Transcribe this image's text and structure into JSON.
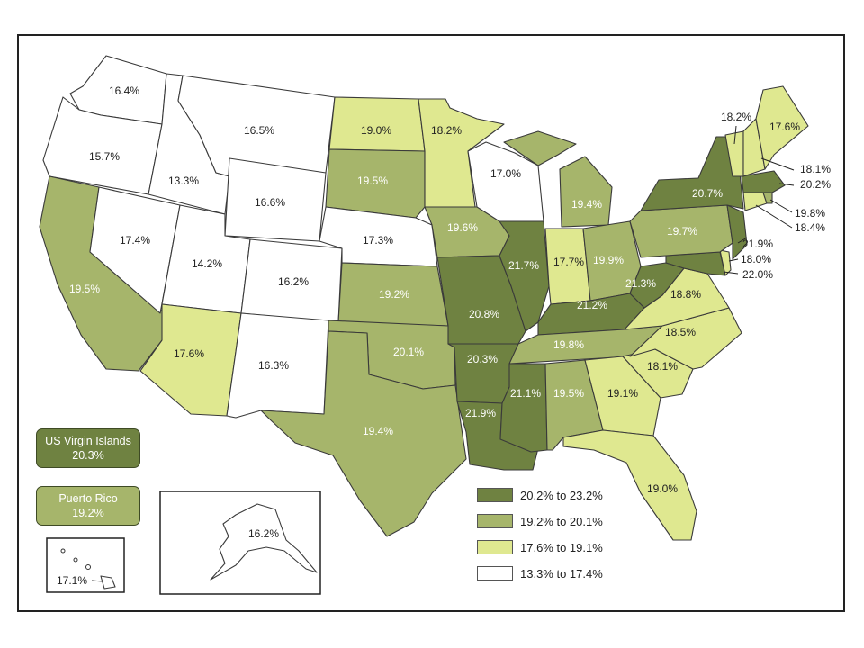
{
  "legend": {
    "items": [
      {
        "label": "20.2% to 23.2%",
        "color": "#6f8241"
      },
      {
        "label": "19.2% to 20.1%",
        "color": "#a6b56b"
      },
      {
        "label": "17.6% to 19.1%",
        "color": "#dfe890"
      },
      {
        "label": "13.3% to 17.4%",
        "color": "#ffffff"
      }
    ]
  },
  "territories": {
    "usvi": {
      "name": "US Virgin Islands",
      "value": "20.3%",
      "color": "#6f8241"
    },
    "pr": {
      "name": "Puerto Rico",
      "value": "19.2%",
      "color": "#a6b56b"
    }
  },
  "states": {
    "WA": "16.4%",
    "OR": "15.7%",
    "ID": "13.3%",
    "MT": "16.5%",
    "WY": "16.6%",
    "CA": "19.5%",
    "NV": "17.4%",
    "UT": "14.2%",
    "CO": "16.2%",
    "AZ": "17.6%",
    "NM": "16.3%",
    "ND": "19.0%",
    "SD": "19.5%",
    "NE": "17.3%",
    "KS": "19.2%",
    "OK": "20.1%",
    "TX": "19.4%",
    "MN": "18.2%",
    "IA": "19.6%",
    "MO": "20.8%",
    "AR": "20.3%",
    "LA": "21.9%",
    "WI": "17.0%",
    "IL": "21.7%",
    "MS": "21.1%",
    "MI": "19.4%",
    "IN": "17.7%",
    "OH": "19.9%",
    "KY": "21.2%",
    "TN": "19.8%",
    "AL": "19.5%",
    "GA": "19.1%",
    "FL": "19.0%",
    "SC": "18.1%",
    "NC": "18.5%",
    "VA": "18.8%",
    "WV": "21.3%",
    "PA": "19.7%",
    "NY": "20.7%",
    "ME": "17.6%",
    "VT": "18.2%",
    "NH": "18.1%",
    "MA": "20.2%",
    "RI": "19.8%",
    "CT": "18.4%",
    "NJ": "21.9%",
    "DE": "18.0%",
    "MD": "22.0%",
    "AK": "16.2%",
    "HI": "17.1%"
  }
}
